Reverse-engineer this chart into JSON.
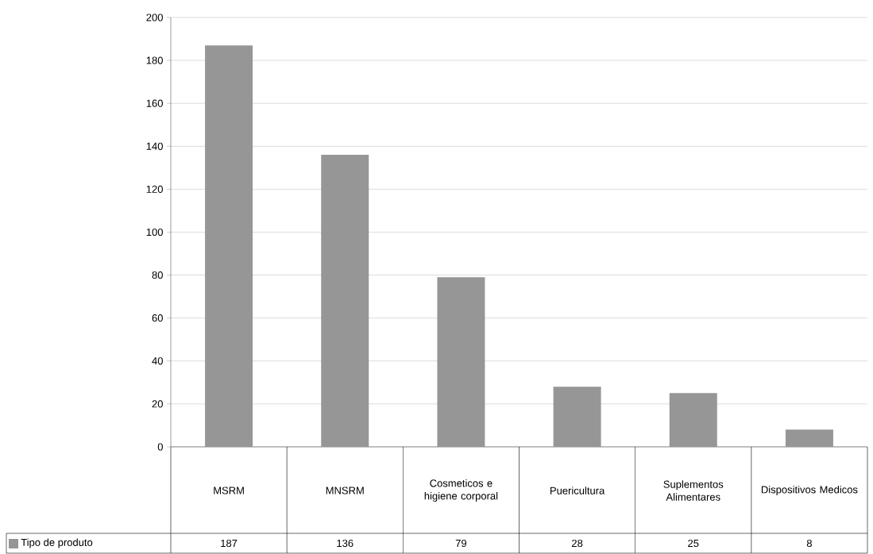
{
  "chart_data": {
    "type": "bar",
    "categories": [
      "MSRM",
      "MNSRM",
      "Cosmeticos e higiene corporal",
      "Puericultura",
      "Suplementos Alimentares",
      "Dispositivos Medicos"
    ],
    "series": [
      {
        "name": "Tipo de produto",
        "color": "#969696",
        "values": [
          187,
          136,
          79,
          28,
          25,
          8
        ]
      }
    ],
    "ylim": [
      0,
      200
    ],
    "yticks": [
      0,
      20,
      40,
      60,
      80,
      100,
      120,
      140,
      160,
      180,
      200
    ],
    "grid": "y",
    "legend": "bottom left",
    "data_labels": true
  }
}
